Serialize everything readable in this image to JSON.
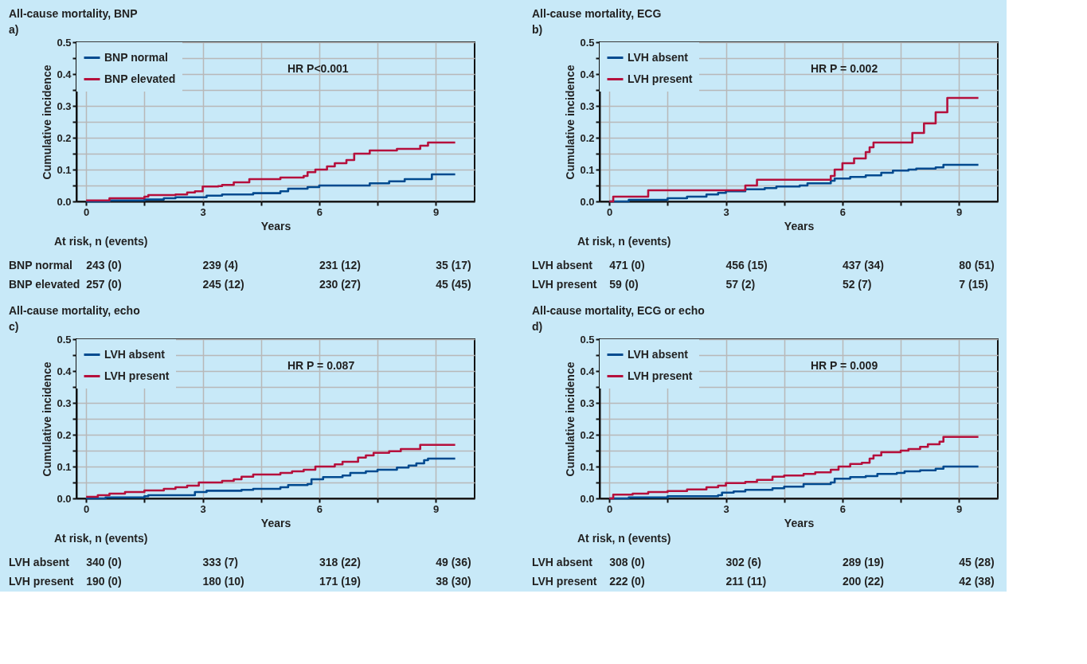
{
  "chart_data": [
    {
      "type": "step",
      "title": "All-cause mortality, BNP",
      "xlabel": "Years",
      "ylabel": "Cumulative incidence",
      "xlim": [
        -0.25,
        10
      ],
      "ylim": [
        0,
        0.5
      ],
      "xticks": [
        0,
        {
          "value": 1.5,
          "label": null
        },
        3,
        {
          "value": 4.5,
          "label": null
        },
        6,
        {
          "value": 7.5,
          "label": null
        },
        9
      ],
      "yticks": [
        {
          "value": 0,
          "label": "0.0"
        },
        {
          "value": 0.05,
          "label": null
        },
        {
          "value": 0.1,
          "label": "0.1"
        },
        {
          "value": 0.15,
          "label": null
        },
        {
          "value": 0.2,
          "label": "0.2"
        },
        {
          "value": 0.25,
          "label": null
        },
        {
          "value": 0.3,
          "label": "0.3"
        },
        {
          "value": 0.35,
          "label": null
        },
        {
          "value": 0.4,
          "label": "0.4"
        },
        {
          "value": 0.45,
          "label": null
        },
        {
          "value": 0.5,
          "label": "0.5"
        }
      ],
      "grid": true,
      "legend": "top left",
      "series": [
        {
          "name": "BNP normal",
          "color": "#004a8f",
          "x": [
            0,
            0.6,
            1.5,
            2.0,
            2.3,
            3.1,
            3.5,
            4.3,
            5.0,
            5.2,
            5.7,
            6.0,
            7.3,
            7.8,
            8.2,
            8.9,
            9.5
          ],
          "values": [
            0,
            0.003,
            0.006,
            0.01,
            0.013,
            0.018,
            0.022,
            0.026,
            0.032,
            0.04,
            0.045,
            0.05,
            0.057,
            0.063,
            0.07,
            0.085,
            0.085
          ]
        },
        {
          "name": "BNP elevated",
          "color": "#b5103c",
          "x": [
            0,
            0.6,
            1.5,
            1.6,
            2.3,
            2.6,
            2.8,
            3.0,
            3.4,
            3.5,
            3.8,
            4.2,
            5.0,
            5.6,
            5.7,
            5.9,
            6.2,
            6.4,
            6.7,
            6.9,
            7.3,
            8.0,
            8.6,
            8.8,
            9.5
          ],
          "values": [
            0.003,
            0.01,
            0.015,
            0.02,
            0.022,
            0.028,
            0.032,
            0.047,
            0.048,
            0.052,
            0.06,
            0.07,
            0.075,
            0.08,
            0.092,
            0.1,
            0.11,
            0.12,
            0.13,
            0.15,
            0.16,
            0.165,
            0.175,
            0.185,
            0.185
          ]
        }
      ],
      "annotations": [
        "a)",
        "HR P<0.001",
        "At risk, n (events)",
        "BNP normal",
        "243 (0)",
        "239 (4)",
        "231 (12)",
        "35 (17)",
        "BNP elevated",
        "257 (0)",
        "245 (12)",
        "230 (27)",
        "45 (45)"
      ]
    },
    {
      "type": "step",
      "title": "All-cause mortality, ECG",
      "xlabel": "Years",
      "ylabel": "Cumulative incidence",
      "xlim": [
        -0.25,
        10
      ],
      "ylim": [
        0,
        0.5
      ],
      "xticks": [
        0,
        {
          "value": 1.5,
          "label": null
        },
        3,
        {
          "value": 4.5,
          "label": null
        },
        6,
        {
          "value": 7.5,
          "label": null
        },
        9
      ],
      "yticks": [
        {
          "value": 0,
          "label": "0.0"
        },
        {
          "value": 0.05,
          "label": null
        },
        {
          "value": 0.1,
          "label": "0.1"
        },
        {
          "value": 0.15,
          "label": null
        },
        {
          "value": 0.2,
          "label": "0.2"
        },
        {
          "value": 0.25,
          "label": null
        },
        {
          "value": 0.3,
          "label": "0.3"
        },
        {
          "value": 0.35,
          "label": null
        },
        {
          "value": 0.4,
          "label": "0.4"
        },
        {
          "value": 0.45,
          "label": null
        },
        {
          "value": 0.5,
          "label": "0.5"
        }
      ],
      "grid": true,
      "legend": "top left",
      "series": [
        {
          "name": "LVH absent",
          "color": "#004a8f",
          "x": [
            0,
            0.5,
            1.5,
            2.0,
            2.5,
            2.8,
            3.0,
            3.5,
            4.0,
            4.3,
            4.9,
            5.1,
            5.7,
            5.8,
            6.2,
            6.6,
            7.0,
            7.3,
            7.7,
            7.9,
            8.4,
            8.6,
            9.5
          ],
          "values": [
            0,
            0.005,
            0.01,
            0.015,
            0.022,
            0.027,
            0.032,
            0.038,
            0.042,
            0.047,
            0.05,
            0.057,
            0.065,
            0.072,
            0.077,
            0.082,
            0.09,
            0.097,
            0.1,
            0.103,
            0.107,
            0.115,
            0.115
          ]
        },
        {
          "name": "LVH present",
          "color": "#b5103c",
          "x": [
            0,
            0.1,
            1.0,
            3.5,
            3.8,
            5.7,
            5.8,
            6.0,
            6.3,
            6.6,
            6.7,
            6.8,
            7.8,
            8.1,
            8.4,
            8.7,
            9.5
          ],
          "values": [
            0,
            0.015,
            0.035,
            0.05,
            0.068,
            0.08,
            0.1,
            0.12,
            0.135,
            0.155,
            0.17,
            0.185,
            0.215,
            0.245,
            0.28,
            0.325,
            0.325
          ]
        }
      ],
      "annotations": [
        "b)",
        "HR P = 0.002",
        "At risk, n (events)",
        "LVH absent",
        "471 (0)",
        "456 (15)",
        "437 (34)",
        "80 (51)",
        "LVH present",
        "59 (0)",
        "57 (2)",
        "52 (7)",
        "7 (15)"
      ]
    },
    {
      "type": "step",
      "title": "All-cause mortality, echo",
      "xlabel": "Years",
      "ylabel": "Cumulative incidence",
      "xlim": [
        -0.25,
        10
      ],
      "ylim": [
        0,
        0.5
      ],
      "xticks": [
        0,
        {
          "value": 1.5,
          "label": null
        },
        3,
        {
          "value": 4.5,
          "label": null
        },
        6,
        {
          "value": 7.5,
          "label": null
        },
        9
      ],
      "yticks": [
        {
          "value": 0,
          "label": "0.0"
        },
        {
          "value": 0.05,
          "label": null
        },
        {
          "value": 0.1,
          "label": "0.1"
        },
        {
          "value": 0.15,
          "label": null
        },
        {
          "value": 0.2,
          "label": "0.2"
        },
        {
          "value": 0.25,
          "label": null
        },
        {
          "value": 0.3,
          "label": "0.3"
        },
        {
          "value": 0.35,
          "label": null
        },
        {
          "value": 0.4,
          "label": "0.4"
        },
        {
          "value": 0.45,
          "label": null
        },
        {
          "value": 0.5,
          "label": "0.5"
        }
      ],
      "grid": true,
      "legend": "top left",
      "series": [
        {
          "name": "LVH absent",
          "color": "#004a8f",
          "x": [
            0,
            0.5,
            1.5,
            1.6,
            2.8,
            3.1,
            4.0,
            4.3,
            5.0,
            5.2,
            5.7,
            5.8,
            6.1,
            6.6,
            6.8,
            7.2,
            7.5,
            8.0,
            8.3,
            8.5,
            8.7,
            8.8,
            9.5
          ],
          "values": [
            0,
            0.003,
            0.007,
            0.01,
            0.02,
            0.024,
            0.027,
            0.03,
            0.035,
            0.042,
            0.045,
            0.06,
            0.067,
            0.072,
            0.08,
            0.085,
            0.09,
            0.097,
            0.103,
            0.11,
            0.12,
            0.125,
            0.125
          ]
        },
        {
          "name": "LVH present",
          "color": "#b5103c",
          "x": [
            0,
            0.3,
            0.6,
            1.0,
            1.5,
            2.0,
            2.3,
            2.6,
            2.9,
            3.5,
            3.8,
            4.0,
            4.3,
            5.0,
            5.3,
            5.6,
            5.9,
            6.4,
            6.6,
            7.0,
            7.2,
            7.4,
            7.8,
            8.1,
            8.6,
            9.5
          ],
          "values": [
            0.005,
            0.01,
            0.015,
            0.02,
            0.025,
            0.03,
            0.035,
            0.04,
            0.05,
            0.055,
            0.06,
            0.068,
            0.075,
            0.08,
            0.085,
            0.09,
            0.1,
            0.107,
            0.115,
            0.128,
            0.135,
            0.143,
            0.148,
            0.155,
            0.168,
            0.168
          ]
        }
      ],
      "annotations": [
        "c)",
        "HR P = 0.087",
        "At risk, n (events)",
        "LVH absent",
        "340 (0)",
        "333 (7)",
        "318 (22)",
        "49 (36)",
        "LVH present",
        "190 (0)",
        "180 (10)",
        "171 (19)",
        "38 (30)"
      ]
    },
    {
      "type": "step",
      "title": "All-cause mortality, ECG or echo",
      "xlabel": "Years",
      "ylabel": "Cumulative incidence",
      "xlim": [
        -0.25,
        10
      ],
      "ylim": [
        0,
        0.5
      ],
      "xticks": [
        0,
        {
          "value": 1.5,
          "label": null
        },
        3,
        {
          "value": 4.5,
          "label": null
        },
        6,
        {
          "value": 7.5,
          "label": null
        },
        9
      ],
      "yticks": [
        {
          "value": 0,
          "label": "0.0"
        },
        {
          "value": 0.05,
          "label": null
        },
        {
          "value": 0.1,
          "label": "0.1"
        },
        {
          "value": 0.15,
          "label": null
        },
        {
          "value": 0.2,
          "label": "0.2"
        },
        {
          "value": 0.25,
          "label": null
        },
        {
          "value": 0.3,
          "label": "0.3"
        },
        {
          "value": 0.35,
          "label": null
        },
        {
          "value": 0.4,
          "label": "0.4"
        },
        {
          "value": 0.45,
          "label": null
        },
        {
          "value": 0.5,
          "label": "0.5"
        }
      ],
      "grid": true,
      "legend": "top left",
      "series": [
        {
          "name": "LVH absent",
          "color": "#004a8f",
          "x": [
            0,
            0.5,
            1.5,
            2.8,
            2.9,
            3.2,
            3.5,
            4.2,
            4.5,
            5.0,
            5.7,
            5.8,
            6.2,
            6.6,
            6.9,
            7.4,
            7.6,
            8.0,
            8.4,
            8.6,
            9.5
          ],
          "values": [
            0,
            0.003,
            0.007,
            0.01,
            0.018,
            0.022,
            0.027,
            0.032,
            0.037,
            0.045,
            0.05,
            0.062,
            0.067,
            0.07,
            0.077,
            0.08,
            0.085,
            0.088,
            0.093,
            0.1,
            0.1
          ]
        },
        {
          "name": "LVH present",
          "color": "#b5103c",
          "x": [
            0,
            0.1,
            0.6,
            1.0,
            1.5,
            2.0,
            2.5,
            2.8,
            3.0,
            3.5,
            3.8,
            4.2,
            4.5,
            5.0,
            5.3,
            5.7,
            5.9,
            6.2,
            6.5,
            6.7,
            6.8,
            7.0,
            7.5,
            7.7,
            8.0,
            8.2,
            8.5,
            8.6,
            9.5
          ],
          "values": [
            0,
            0.012,
            0.015,
            0.02,
            0.023,
            0.028,
            0.035,
            0.04,
            0.048,
            0.052,
            0.058,
            0.068,
            0.072,
            0.077,
            0.082,
            0.09,
            0.1,
            0.108,
            0.112,
            0.125,
            0.135,
            0.145,
            0.15,
            0.155,
            0.162,
            0.17,
            0.178,
            0.193,
            0.193
          ]
        }
      ],
      "annotations": [
        "d)",
        "HR P = 0.009",
        "At risk, n (events)",
        "LVH absent",
        "308 (0)",
        "302 (6)",
        "289 (19)",
        "45 (28)",
        "LVH present",
        "222 (0)",
        "211 (11)",
        "200 (22)",
        "42 (38)"
      ]
    }
  ]
}
